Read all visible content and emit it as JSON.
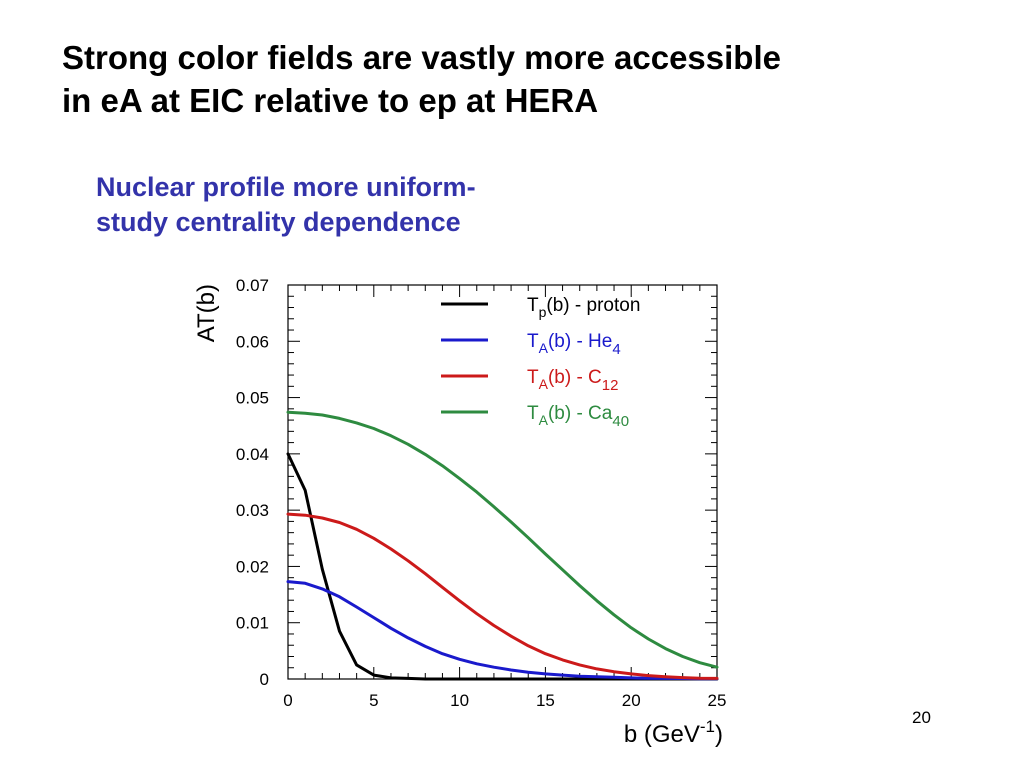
{
  "slide": {
    "title_lines": [
      "Strong color fields are vastly more accessible",
      "in eA at EIC relative to ep at HERA"
    ],
    "subtitle_lines": [
      "Nuclear profile more uniform-",
      "study centrality dependence"
    ],
    "subtitle_color": "#3333aa",
    "page_number": "20"
  },
  "chart_data": {
    "type": "line",
    "ylabel": "AT(b)",
    "xlabel": {
      "main": "b (GeV",
      "sup": "-1",
      "close": ")"
    },
    "xlim": [
      0,
      25
    ],
    "ylim": [
      0,
      0.07
    ],
    "xticks": [
      0,
      5,
      10,
      15,
      20,
      25
    ],
    "xtick_labels": [
      "0",
      "5",
      "10",
      "15",
      "20",
      "25"
    ],
    "yticks": [
      0,
      0.01,
      0.02,
      0.03,
      0.04,
      0.05,
      0.06,
      0.07
    ],
    "ytick_labels": [
      "0",
      "0.01",
      "0.02",
      "0.03",
      "0.04",
      "0.05",
      "0.06",
      "0.07"
    ],
    "grid": false,
    "legend_position": "top-right",
    "x": [
      0,
      1,
      2,
      3,
      4,
      5,
      6,
      7,
      8,
      9,
      10,
      11,
      12,
      13,
      14,
      15,
      16,
      17,
      18,
      19,
      20,
      21,
      22,
      23,
      24,
      25
    ],
    "series": [
      {
        "name": "proton",
        "legend_main": "T",
        "legend_sub": "p",
        "legend_rest": "(b) - proton",
        "legend_tail": "",
        "color": "#000000",
        "values": [
          0.04,
          0.0335,
          0.0195,
          0.0085,
          0.0025,
          0.0007,
          0.0002,
          0.0001,
          0,
          0,
          0,
          0,
          0,
          0,
          0,
          0,
          0,
          0,
          0,
          0,
          0,
          0,
          0,
          0,
          0,
          0
        ]
      },
      {
        "name": "He4",
        "legend_main": "T",
        "legend_sub": "A",
        "legend_rest": "(b) - He",
        "legend_tail": "4",
        "color": "#1a1acc",
        "values": [
          0.0173,
          0.017,
          0.016,
          0.0146,
          0.0128,
          0.0109,
          0.009,
          0.0073,
          0.0058,
          0.0045,
          0.0035,
          0.0027,
          0.0021,
          0.0016,
          0.0012,
          0.0009,
          0.0007,
          0.0005,
          0.0004,
          0.0003,
          0.0002,
          0.00015,
          0.0001,
          8e-05,
          5e-05,
          3e-05
        ]
      },
      {
        "name": "C12",
        "legend_main": "T",
        "legend_sub": "A",
        "legend_rest": "(b) - C",
        "legend_tail": "12",
        "color": "#cc1a1a",
        "values": [
          0.0293,
          0.0291,
          0.0286,
          0.0278,
          0.0266,
          0.025,
          0.0231,
          0.021,
          0.0187,
          0.0163,
          0.0139,
          0.0116,
          0.0095,
          0.0076,
          0.0059,
          0.0045,
          0.0034,
          0.0025,
          0.0018,
          0.0013,
          0.0009,
          0.0006,
          0.0004,
          0.00025,
          0.00015,
          0.0001
        ]
      },
      {
        "name": "Ca40",
        "legend_main": "T",
        "legend_sub": "A",
        "legend_rest": "(b) - Ca",
        "legend_tail": "40",
        "color": "#2e8b40",
        "values": [
          0.0474,
          0.0472,
          0.0469,
          0.0463,
          0.0455,
          0.0445,
          0.0432,
          0.0417,
          0.0399,
          0.0379,
          0.0356,
          0.0332,
          0.0306,
          0.0279,
          0.0251,
          0.0222,
          0.0194,
          0.0166,
          0.0139,
          0.0114,
          0.0091,
          0.0071,
          0.0054,
          0.004,
          0.0029,
          0.0021
        ]
      }
    ]
  }
}
